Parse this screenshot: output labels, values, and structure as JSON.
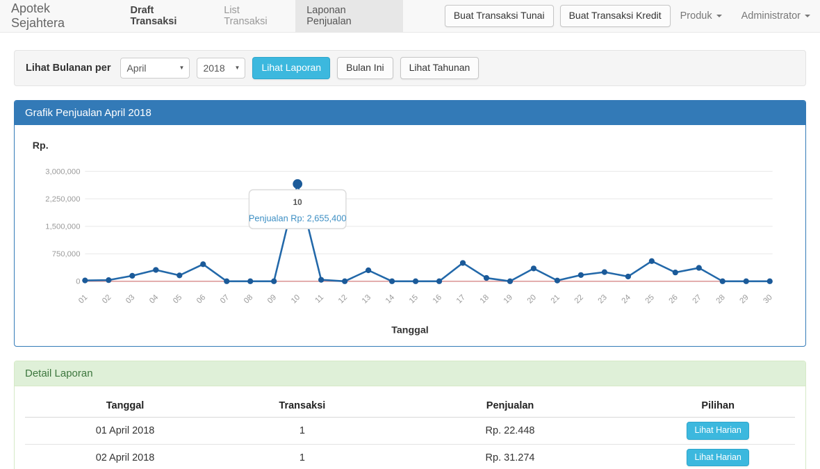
{
  "navbar": {
    "brand": "Apotek Sejahtera",
    "items": [
      {
        "label": "Draft Transaksi"
      },
      {
        "label": "List Transaksi"
      },
      {
        "label": "Laponan Penjualan"
      }
    ],
    "actions": [
      {
        "label": "Buat Transaksi Tunai"
      },
      {
        "label": "Buat Transaksi Kredit"
      }
    ],
    "menus": [
      {
        "label": "Produk"
      },
      {
        "label": "Administrator"
      }
    ]
  },
  "filter": {
    "label": "Lihat Bulanan per",
    "month": "April",
    "year": "2018",
    "submit": "Lihat Laporan",
    "this_month": "Bulan Ini",
    "yearly": "Lihat Tahunan"
  },
  "chart_panel": {
    "title": "Grafik Penjualan April 2018"
  },
  "chart_data": {
    "type": "line",
    "title": "Grafik Penjualan April 2018",
    "y_axis_label": "Rp.",
    "x_axis_label": "Tanggal",
    "y_ticks": [
      0,
      750000,
      1500000,
      2250000,
      3000000
    ],
    "y_tick_labels": [
      "0",
      "750,000",
      "1,500,000",
      "2,250,000",
      "3,000,000"
    ],
    "ylim": [
      0,
      3250000
    ],
    "grid": true,
    "categories": [
      "01",
      "02",
      "03",
      "04",
      "05",
      "06",
      "07",
      "08",
      "09",
      "10",
      "11",
      "12",
      "13",
      "14",
      "15",
      "16",
      "17",
      "18",
      "19",
      "20",
      "21",
      "22",
      "23",
      "24",
      "25",
      "26",
      "27",
      "28",
      "29",
      "30"
    ],
    "series": [
      {
        "name": "Penjualan",
        "color": "#2268a9",
        "point_color": "#1b5a99",
        "values": [
          22448,
          31274,
          150000,
          310000,
          160000,
          465000,
          0,
          0,
          0,
          2655400,
          40000,
          0,
          300000,
          0,
          0,
          0,
          500000,
          90000,
          0,
          350000,
          20000,
          170000,
          250000,
          130000,
          550000,
          240000,
          365000,
          0,
          0,
          0
        ]
      }
    ],
    "zero_line_color": "#dd9a9a",
    "tooltip": {
      "index": 9,
      "category": "10",
      "text": "Penjualan Rp: 2,655,400",
      "value": 2655400
    }
  },
  "detail_panel": {
    "title": "Detail Laporan",
    "headers": [
      "Tanggal",
      "Transaksi",
      "Penjualan",
      "Pilihan"
    ],
    "rows": [
      {
        "tanggal": "01 April 2018",
        "transaksi": "1",
        "penjualan": "Rp. 22.448",
        "action": "Lihat Harian"
      },
      {
        "tanggal": "02 April 2018",
        "transaksi": "1",
        "penjualan": "Rp. 31.274",
        "action": "Lihat Harian"
      }
    ]
  },
  "colors": {
    "primary": "#337ab7",
    "success_bg": "#dff0d8",
    "success_border": "#d6e9c6",
    "success_text": "#3c763d",
    "info_button": "#3cb8de",
    "line": "#2268a9",
    "zero_line": "#dd9a9a"
  }
}
